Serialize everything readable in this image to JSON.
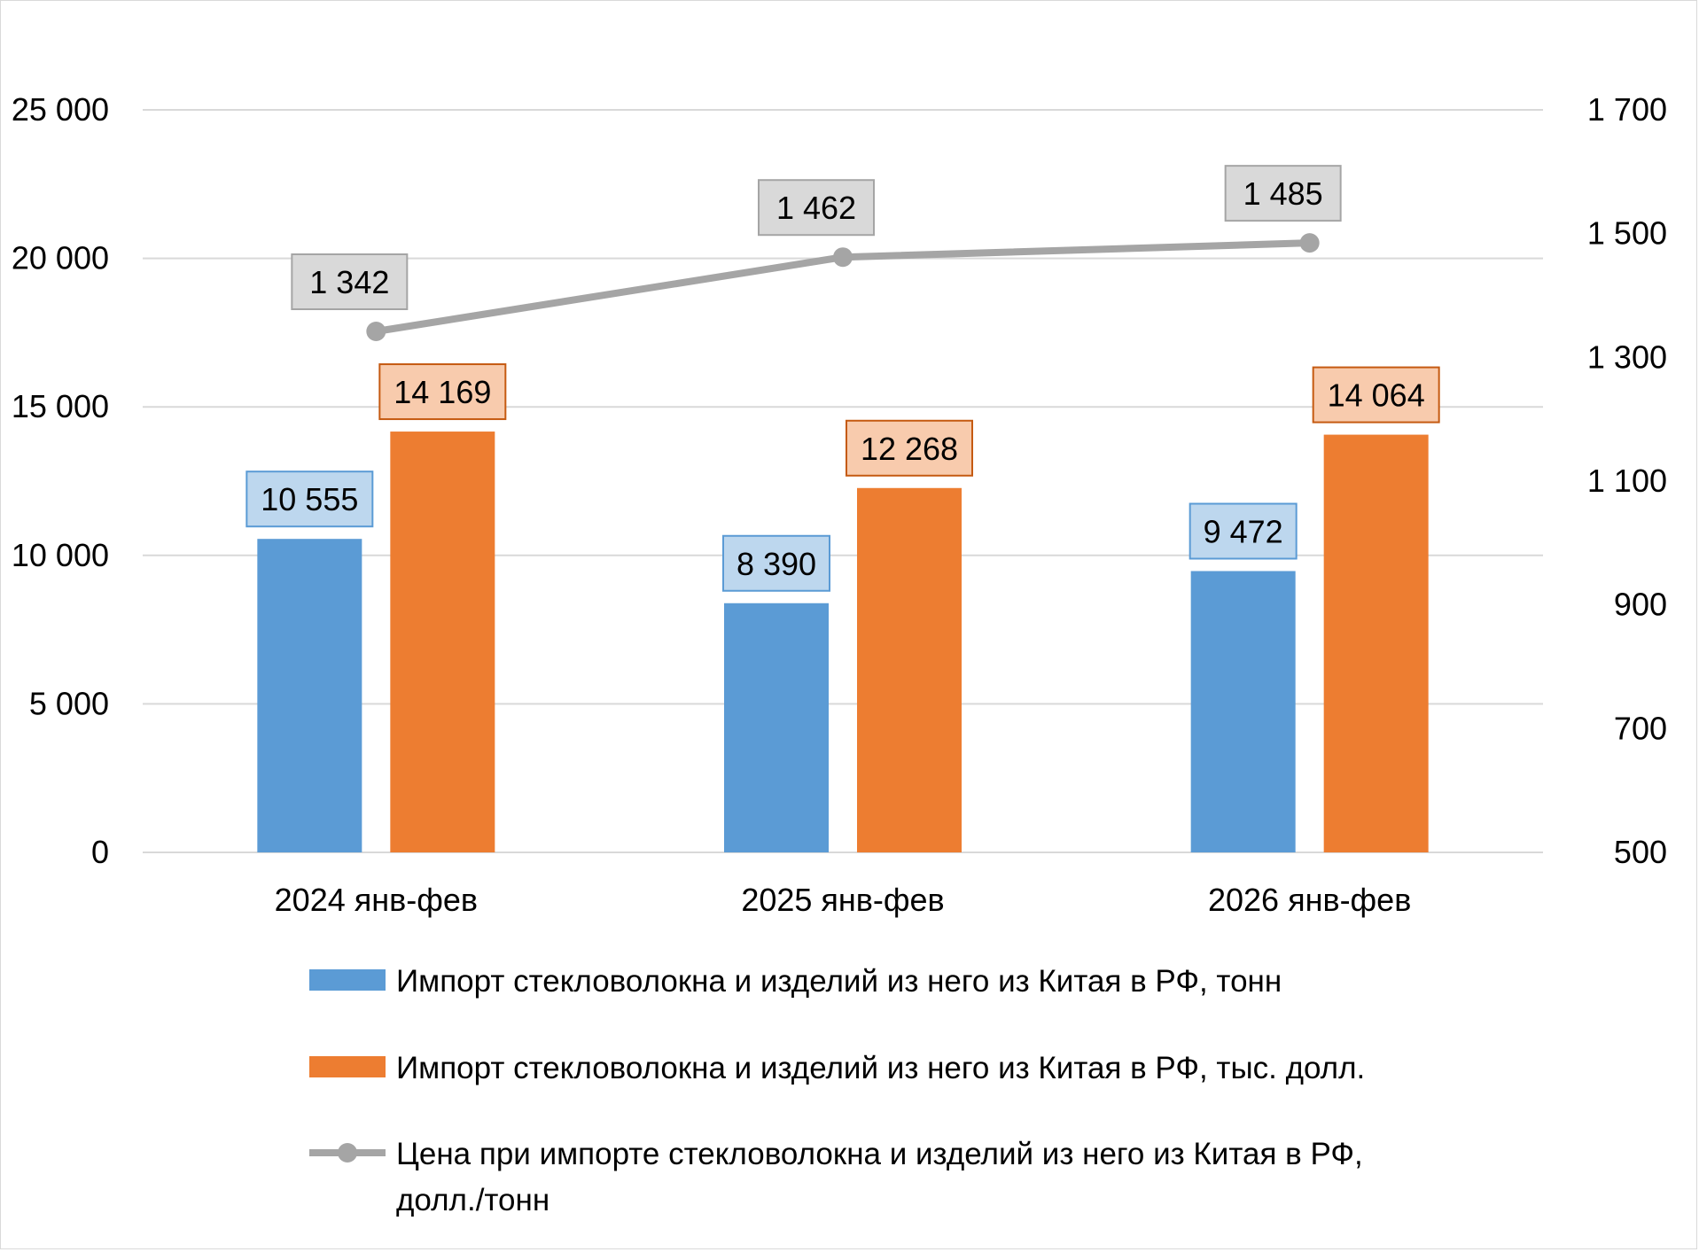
{
  "chart_data": {
    "type": "bar",
    "categories": [
      "2024 янв-фев",
      "2025 янв-фев",
      "2026 янв-фев"
    ],
    "series": [
      {
        "name": "Импорт стекловолокна и изделий из него из Китая в РФ, тонн",
        "type": "bar",
        "axis": "left",
        "color": "#5b9bd5",
        "label_fill": "#bdd7ee",
        "label_border": "#5b9bd5",
        "values": [
          10555,
          8390,
          9472
        ],
        "labels": [
          "10 555",
          "8 390",
          "9 472"
        ]
      },
      {
        "name": "Импорт стекловолокна и изделий из него из Китая в РФ, тыс. долл.",
        "type": "bar",
        "axis": "left",
        "color": "#ed7d31",
        "label_fill": "#f8cbad",
        "label_border": "#c55a11",
        "values": [
          14169,
          12268,
          14064
        ],
        "labels": [
          "14 169",
          "12 268",
          "14 064"
        ]
      },
      {
        "name": "Цена при импорте стекловолокна и изделий из него из Китая в РФ, долл./тонн",
        "type": "line",
        "axis": "right",
        "color": "#a5a5a5",
        "label_fill": "#d9d9d9",
        "label_border": "#a5a5a5",
        "values": [
          1342,
          1462,
          1485
        ],
        "labels": [
          "1 342",
          "1 462",
          "1 485"
        ]
      }
    ],
    "y_left": {
      "ylim": [
        0,
        25000
      ],
      "ticks": [
        0,
        5000,
        10000,
        15000,
        20000,
        25000
      ],
      "tick_labels": [
        "0",
        "5 000",
        "10 000",
        "15 000",
        "20 000",
        "25 000"
      ]
    },
    "y_right": {
      "ylim": [
        500,
        1700
      ],
      "ticks": [
        500,
        700,
        900,
        1100,
        1300,
        1500,
        1700
      ],
      "tick_labels": [
        "500",
        "700",
        "900",
        "1 100",
        "1 300",
        "1 500",
        "1 700"
      ]
    },
    "grid": true,
    "legend_position": "bottom",
    "legend_lines": [
      [
        "Импорт стекловолокна и изделий из него из Китая в РФ, тонн"
      ],
      [
        "Импорт стекловолокна и изделий из него из Китая в РФ, тыс. долл."
      ],
      [
        "Цена при импорте стекловолокна и изделий из него из Китая в РФ,",
        "долл./тонн"
      ]
    ],
    "gridline_color": "#d9d9d9"
  }
}
